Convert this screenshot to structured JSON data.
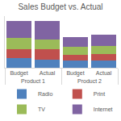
{
  "chart_data": {
    "type": "bar",
    "title": "Sales Budget vs. Actual",
    "categories": [
      "Budget",
      "Actual",
      "Budget",
      "Actual"
    ],
    "category_groups": [
      "Product 1",
      "Product 1",
      "Product 2",
      "Product 2"
    ],
    "series": [
      {
        "name": "Radio",
        "color": "#4f81bd",
        "values": [
          17,
          14,
          12,
          12
        ]
      },
      {
        "name": "Print",
        "color": "#c0504d",
        "values": [
          15,
          18,
          10,
          12
        ]
      },
      {
        "name": "TV",
        "color": "#9bbb59",
        "values": [
          20,
          17,
          15,
          14
        ]
      },
      {
        "name": "Internet",
        "color": "#8064a2",
        "values": [
          30,
          33,
          17,
          19
        ]
      }
    ],
    "ylim": [
      0,
      90
    ],
    "stacked": true,
    "legend": "bottom",
    "tick_labels": "x",
    "grid": false
  }
}
